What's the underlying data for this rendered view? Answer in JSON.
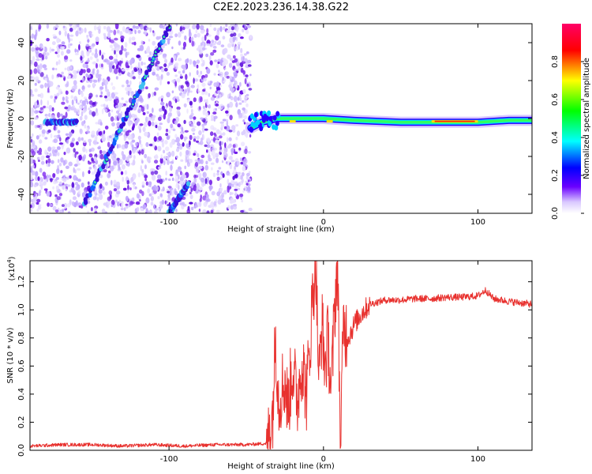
{
  "title": "C2E2.2023.236.14.38.G22",
  "colorbar": {
    "label": "Normalized spectral amplitude",
    "ticks": [
      "0.0",
      "0.2",
      "0.4",
      "0.6",
      "0.8"
    ],
    "range": [
      0,
      1
    ],
    "colormap": [
      "#ffffff",
      "#6a00ff",
      "#0000ff",
      "#00ffff",
      "#00ff00",
      "#ffff00",
      "#ff0000",
      "#ff00ff"
    ]
  },
  "chart_data": [
    {
      "type": "heatmap",
      "xlabel": "Height of straight line (km)",
      "ylabel": "Frequency (Hz)",
      "xlim": [
        -190,
        135
      ],
      "ylim": [
        -50,
        50
      ],
      "xticks": [
        -100,
        0,
        100
      ],
      "yticks": [
        -40,
        -20,
        0,
        20,
        40
      ],
      "noise_region_x": [
        -190,
        -47
      ],
      "signal_trace": {
        "x": [
          -47,
          -40,
          -30,
          -20,
          0,
          20,
          50,
          80,
          100,
          120,
          135
        ],
        "y": [
          -5,
          -2,
          0,
          0,
          0,
          -1,
          -2,
          -2,
          -2,
          -1,
          -1
        ]
      },
      "streaks": [
        {
          "x": [
            -155,
            -100
          ],
          "y": [
            -45,
            48
          ]
        },
        {
          "x": [
            -180,
            -160
          ],
          "y": [
            -2,
            -2
          ]
        },
        {
          "x": [
            -100,
            -88
          ],
          "y": [
            -50,
            -35
          ]
        }
      ]
    },
    {
      "type": "line",
      "xlabel": "Height of straight line (km)",
      "ylabel": "SNR (10 * v/v)",
      "yscale_label": "(x10",
      "yscale_exp": "4",
      "yscale_close": ")",
      "xlim": [
        -190,
        135
      ],
      "ylim": [
        0.0,
        1.35
      ],
      "xticks": [
        -100,
        0,
        100
      ],
      "yticks": [
        "0.0",
        "0.2",
        "0.4",
        "0.6",
        "0.8",
        "1.0",
        "1.2"
      ],
      "color": "#e8312e",
      "series": [
        {
          "x": [
            -190,
            -170,
            -150,
            -130,
            -110,
            -90,
            -70,
            -50,
            -36,
            -33,
            -31,
            -29,
            -27,
            -25,
            -23,
            -20,
            -17,
            -14,
            -11,
            -9,
            -7,
            -5,
            -3,
            -1,
            1,
            3,
            5,
            7,
            9,
            11,
            13,
            16,
            20,
            25,
            30,
            40,
            50,
            60,
            70,
            80,
            90,
            100,
            105,
            110,
            120,
            135
          ],
          "y": [
            0.03,
            0.04,
            0.04,
            0.03,
            0.04,
            0.03,
            0.04,
            0.04,
            0.05,
            0.25,
            0.82,
            0.35,
            0.45,
            0.5,
            0.3,
            0.6,
            0.35,
            0.65,
            0.4,
            0.7,
            1.1,
            1.35,
            0.5,
            0.9,
            0.6,
            0.8,
            0.4,
            0.95,
            1.35,
            0.08,
            0.9,
            0.8,
            0.9,
            0.98,
            1.04,
            1.07,
            1.07,
            1.08,
            1.08,
            1.09,
            1.09,
            1.1,
            1.14,
            1.08,
            1.06,
            1.04
          ]
        }
      ]
    }
  ]
}
